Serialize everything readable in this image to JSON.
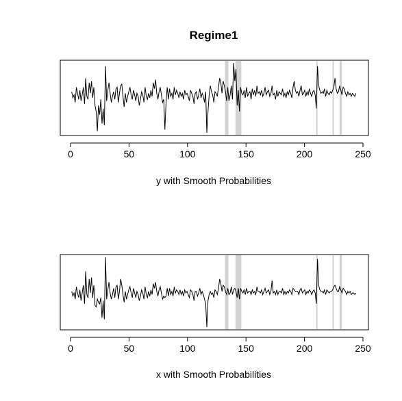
{
  "figure": {
    "title": "Regime1",
    "background": "#ffffff",
    "shade_color": "#d3d3d3",
    "line_color": "#000000"
  },
  "chart_data": [
    {
      "type": "line",
      "title": "Regime1",
      "xlabel": "y with Smooth Probabilities",
      "ylabel": "",
      "xlim": [
        0,
        250
      ],
      "xticks": [
        0,
        50,
        100,
        150,
        200,
        250
      ],
      "yaxis_shown": false,
      "grid": false,
      "legend": "none",
      "shaded_regions": [
        [
          132,
          135
        ],
        [
          141,
          146
        ],
        [
          210,
          211
        ],
        [
          224,
          225
        ],
        [
          230,
          232
        ]
      ],
      "series": [
        {
          "values": [
            0.15,
            -0.05,
            0.05,
            -0.2,
            0.3,
            0.1,
            -0.1,
            0.2,
            -0.15,
            0.05,
            0.3,
            -0.25,
            0.6,
            0.0,
            -0.1,
            0.45,
            0.1,
            0.5,
            -0.05,
            0.3,
            -0.3,
            -0.5,
            -1.15,
            -0.3,
            -0.6,
            -0.1,
            -0.9,
            -0.4,
            -0.95,
            1.0,
            -0.15,
            0.2,
            0.45,
            0.1,
            -0.2,
            0.0,
            0.15,
            -0.1,
            0.25,
            0.3,
            -0.2,
            0.1,
            0.35,
            0.4,
            0.0,
            -0.35,
            0.1,
            -0.2,
            0.0,
            0.15,
            0.3,
            0.05,
            -0.1,
            0.2,
            0.05,
            -0.15,
            0.1,
            0.0,
            -0.3,
            -0.1,
            0.15,
            0.05,
            -0.2,
            0.3,
            0.0,
            -0.1,
            0.1,
            -0.05,
            0.2,
            0.0,
            0.45,
            0.25,
            0.55,
            0.1,
            -0.1,
            0.15,
            0.3,
            0.05,
            -0.2,
            -0.1,
            -1.1,
            -0.2,
            0.3,
            -0.1,
            0.25,
            0.0,
            0.1,
            -0.1,
            0.3,
            0.05,
            0.2,
            0.1,
            -0.05,
            0.15,
            0.0,
            0.1,
            -0.1,
            0.2,
            0.05,
            0.1,
            0.0,
            -0.15,
            0.2,
            0.1,
            0.0,
            -0.25,
            0.1,
            0.15,
            -0.1,
            0.05,
            0.25,
            -0.05,
            0.1,
            0.0,
            -0.2,
            0.15,
            -1.2,
            -0.5,
            0.05,
            0.35,
            0.15,
            0.05,
            -0.2,
            0.15,
            0.1,
            0.0,
            0.3,
            0.6,
            0.45,
            0.1,
            0.5,
            0.35,
            0.15,
            -0.15,
            0.3,
            -0.15,
            0.05,
            0.35,
            -0.1,
            1.1,
            0.5,
            0.9,
            -0.3,
            0.2,
            -0.5,
            0.3,
            0.1,
            0.05,
            0.2,
            -0.05,
            0.3,
            0.0,
            0.1,
            0.15,
            -0.1,
            0.25,
            0.05,
            0.2,
            0.0,
            0.35,
            0.1,
            0.15,
            0.05,
            0.2,
            0.0,
            0.1,
            0.3,
            0.05,
            0.15,
            0.2,
            0.0,
            0.1,
            0.35,
            0.05,
            0.1,
            -0.1,
            0.2,
            0.0,
            0.15,
            0.1,
            0.05,
            0.25,
            0.0,
            0.1,
            -0.05,
            0.15,
            0.05,
            0.2,
            0.1,
            -0.05,
            0.3,
            0.5,
            0.2,
            0.1,
            0.15,
            0.0,
            0.2,
            0.35,
            0.05,
            0.1,
            0.2,
            0.0,
            0.15,
            0.05,
            0.25,
            0.1,
            0.0,
            0.15,
            0.2,
            0.05,
            -0.4,
            1.0,
            0.35,
            0.2,
            0.1,
            0.15,
            0.1,
            0.25,
            0.0,
            0.2,
            0.1,
            0.05,
            0.15,
            0.1,
            0.2,
            0.3,
            0.6,
            0.25,
            0.1,
            0.15,
            0.35,
            0.2,
            0.05,
            0.3,
            0.25,
            0.1,
            0.0,
            0.15,
            0.05,
            0.1,
            0.0,
            0.1,
            0.05,
            0.0,
            0.1
          ]
        }
      ]
    },
    {
      "type": "line",
      "title": "",
      "xlabel": "x with Smooth Probabilities",
      "ylabel": "",
      "xlim": [
        0,
        250
      ],
      "xticks": [
        0,
        50,
        100,
        150,
        200,
        250
      ],
      "yaxis_shown": false,
      "grid": false,
      "legend": "none",
      "shaded_regions": [
        [
          132,
          135
        ],
        [
          141,
          146
        ],
        [
          210,
          211
        ],
        [
          224,
          225
        ],
        [
          230,
          232
        ]
      ],
      "series": [
        {
          "values": [
            0.1,
            -0.05,
            0.05,
            -0.15,
            0.25,
            0.05,
            -0.1,
            0.15,
            -0.2,
            0.05,
            0.3,
            -0.3,
            0.75,
            0.0,
            -0.1,
            0.5,
            0.05,
            0.55,
            -0.1,
            0.3,
            -0.35,
            -0.4,
            -0.15,
            -0.25,
            -0.3,
            -0.1,
            -0.75,
            -0.2,
            -0.8,
            1.2,
            -0.15,
            0.15,
            0.4,
            0.05,
            -0.15,
            0.0,
            0.2,
            -0.1,
            0.25,
            0.3,
            -0.15,
            0.1,
            0.5,
            0.3,
            0.0,
            -0.25,
            0.1,
            -0.15,
            0.0,
            0.15,
            0.25,
            0.05,
            -0.1,
            0.2,
            0.05,
            -0.1,
            0.1,
            0.0,
            -0.2,
            -0.05,
            0.15,
            0.05,
            -0.15,
            0.25,
            0.0,
            -0.1,
            0.1,
            -0.05,
            0.15,
            0.0,
            0.35,
            0.2,
            0.4,
            0.1,
            -0.05,
            0.15,
            0.25,
            0.05,
            -0.15,
            -0.05,
            -0.1,
            -0.05,
            0.2,
            -0.05,
            0.2,
            0.0,
            0.1,
            -0.05,
            0.25,
            0.05,
            0.15,
            0.1,
            0.0,
            0.15,
            0.0,
            0.1,
            -0.05,
            0.15,
            0.05,
            0.1,
            0.0,
            -0.1,
            0.15,
            0.1,
            0.0,
            -0.2,
            0.1,
            0.1,
            -0.05,
            0.05,
            0.2,
            0.0,
            0.1,
            0.0,
            -0.15,
            -0.3,
            -1.05,
            -0.2,
            0.0,
            0.1,
            0.0,
            0.05,
            -0.1,
            0.15,
            0.1,
            0.0,
            0.2,
            0.5,
            0.35,
            0.1,
            0.3,
            0.25,
            0.1,
            0.0,
            0.2,
            0.0,
            0.05,
            0.25,
            0.0,
            0.15,
            0.2,
            0.1,
            -0.1,
            0.2,
            -0.15,
            0.2,
            0.1,
            0.05,
            0.15,
            0.0,
            0.2,
            0.05,
            0.1,
            0.1,
            0.0,
            0.15,
            0.05,
            0.1,
            0.0,
            0.25,
            0.1,
            0.1,
            0.05,
            0.15,
            0.0,
            0.1,
            0.2,
            0.05,
            0.1,
            0.15,
            0.0,
            0.1,
            0.45,
            0.05,
            0.1,
            0.0,
            0.15,
            0.0,
            0.1,
            0.1,
            0.05,
            0.2,
            0.0,
            0.1,
            0.0,
            0.1,
            0.05,
            0.15,
            0.1,
            0.0,
            0.2,
            0.15,
            0.1,
            0.1,
            0.1,
            0.0,
            0.15,
            0.2,
            0.05,
            0.1,
            0.15,
            0.0,
            0.1,
            0.05,
            0.15,
            0.1,
            0.0,
            0.1,
            0.15,
            0.05,
            -0.3,
            1.15,
            0.3,
            0.15,
            0.1,
            0.1,
            0.05,
            0.15,
            0.0,
            0.15,
            0.1,
            0.05,
            0.1,
            0.1,
            0.15,
            0.25,
            0.3,
            0.2,
            0.1,
            0.1,
            0.25,
            0.15,
            0.05,
            0.2,
            0.15,
            0.1,
            0.0,
            0.1,
            0.05,
            0.1,
            0.0,
            0.05,
            0.05,
            0.0,
            0.05
          ]
        }
      ]
    }
  ]
}
